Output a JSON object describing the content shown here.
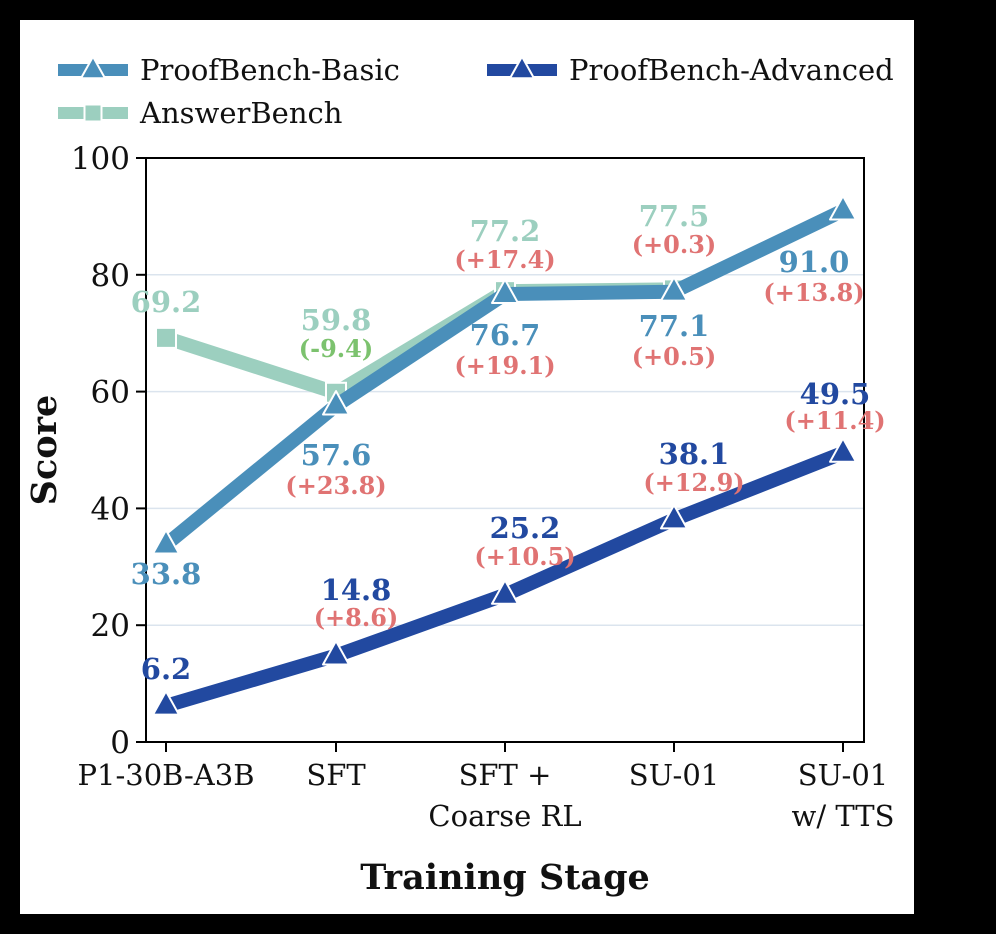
{
  "chart_data": {
    "type": "line",
    "xlabel": "Training Stage",
    "ylabel": "Score",
    "ylim": [
      0,
      100
    ],
    "yticks": [
      0,
      20,
      40,
      60,
      80,
      100
    ],
    "grid": "horizontal",
    "legend_placement": "top",
    "categories": [
      [
        "P1-30B-A3B"
      ],
      [
        "SFT"
      ],
      [
        "SFT +",
        "Coarse RL"
      ],
      [
        "SU-01"
      ],
      [
        "SU-01",
        "w/ TTS"
      ]
    ],
    "series": [
      {
        "name": "AnswerBench",
        "color": "#9ccfbf",
        "marker": "square",
        "values": [
          69.2,
          59.8,
          77.2,
          77.5,
          null
        ],
        "value_labels": [
          "69.2",
          "59.8",
          "77.2",
          "77.5",
          null
        ],
        "delta_labels": [
          null,
          "(-9.4)",
          "(+17.4)",
          "(+0.3)",
          null
        ]
      },
      {
        "name": "ProofBench-Basic",
        "color": "#4a8fba",
        "marker": "triangle",
        "values": [
          33.8,
          57.6,
          76.7,
          77.1,
          91.0
        ],
        "value_labels": [
          "33.8",
          "57.6",
          "76.7",
          "77.1",
          "91.0"
        ],
        "delta_labels": [
          null,
          "(+23.8)",
          "(+19.1)",
          "(+0.5)",
          "(+13.8)"
        ]
      },
      {
        "name": "ProofBench-Advanced",
        "color": "#2249a0",
        "marker": "triangle",
        "values": [
          6.2,
          14.8,
          25.2,
          38.1,
          49.5
        ],
        "value_labels": [
          "6.2",
          "14.8",
          "25.2",
          "38.1",
          "49.5"
        ],
        "delta_labels": [
          null,
          "(+8.6)",
          "(+10.5)",
          "(+12.9)",
          "(+11.4)"
        ]
      }
    ],
    "colors": {
      "positive_delta": "#e07373",
      "negative_delta": "#7cc26e"
    }
  }
}
